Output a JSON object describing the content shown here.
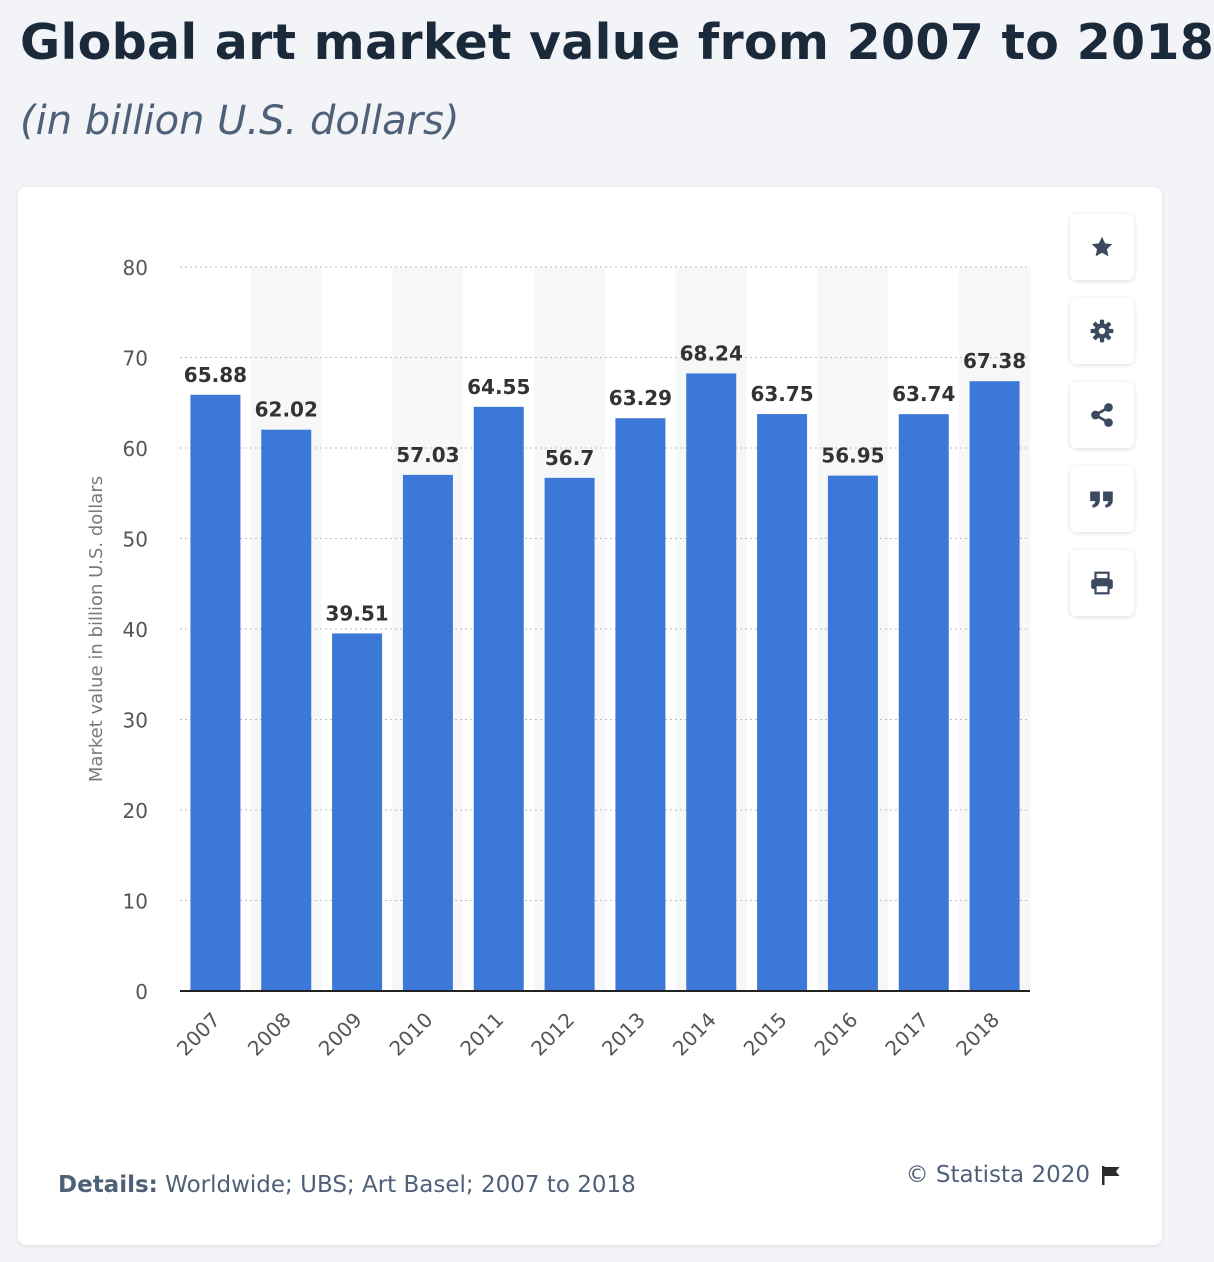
{
  "header": {
    "title": "Global art market value from 2007 to 2018",
    "subtitle": "(in billion U.S. dollars)"
  },
  "toolbar": [
    {
      "name": "favorite-button",
      "icon": "star-icon"
    },
    {
      "name": "settings-button",
      "icon": "gear-icon"
    },
    {
      "name": "share-button",
      "icon": "share-icon"
    },
    {
      "name": "cite-button",
      "icon": "quote-icon"
    },
    {
      "name": "print-button",
      "icon": "print-icon"
    }
  ],
  "footer": {
    "details_label": "Details:",
    "details_text": " Worldwide; UBS; Art Basel; 2007 to 2018",
    "credit": "© Statista 2020",
    "credit_icon": "flag-icon"
  },
  "colors": {
    "bar": "#3c78d8",
    "title": "#1b2a3b",
    "text": "#4f6079",
    "band": "#f7f7f7"
  },
  "chart_data": {
    "type": "bar",
    "categories": [
      "2007",
      "2008",
      "2009",
      "2010",
      "2011",
      "2012",
      "2013",
      "2014",
      "2015",
      "2016",
      "2017",
      "2018"
    ],
    "values": [
      65.88,
      62.02,
      39.51,
      57.03,
      64.55,
      56.7,
      63.29,
      68.24,
      63.75,
      56.95,
      63.74,
      67.38
    ],
    "value_labels": [
      "65.88",
      "62.02",
      "39.51",
      "57.03",
      "64.55",
      "56.7",
      "63.29",
      "68.24",
      "63.75",
      "56.95",
      "63.74",
      "67.38"
    ],
    "title": "Global art market value from 2007 to 2018",
    "subtitle": "(in billion U.S. dollars)",
    "xlabel": "",
    "ylabel": "Market value in billion U.S. dollars",
    "ylim": [
      0,
      80
    ],
    "yticks": [
      0,
      10,
      20,
      30,
      40,
      50,
      60,
      70,
      80
    ],
    "ytick_labels": [
      "0",
      "10",
      "20",
      "30",
      "40",
      "50",
      "60",
      "70",
      "80"
    ],
    "grid": true,
    "legend": "none"
  }
}
